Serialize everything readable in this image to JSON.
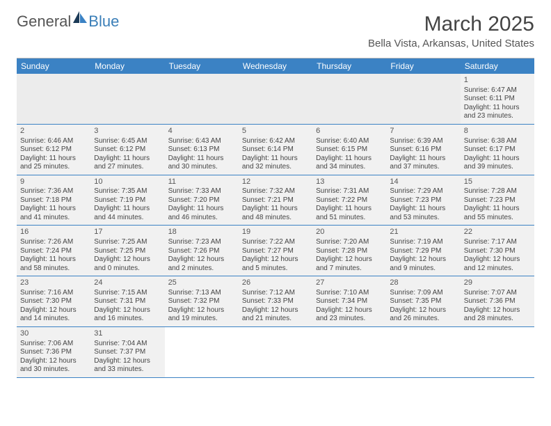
{
  "logo": {
    "text1": "General",
    "text2": "Blue"
  },
  "title": "March 2025",
  "location": "Bella Vista, Arkansas, United States",
  "day_headers": [
    "Sunday",
    "Monday",
    "Tuesday",
    "Wednesday",
    "Thursday",
    "Friday",
    "Saturday"
  ],
  "colors": {
    "header_bg": "#3b82c4",
    "header_text": "#ffffff",
    "cell_bg": "#f1f1f1",
    "row_border": "#3b82c4",
    "logo_blue": "#3b7fb8",
    "text": "#444444"
  },
  "weeks": [
    [
      null,
      null,
      null,
      null,
      null,
      null,
      {
        "n": "1",
        "sr": "Sunrise: 6:47 AM",
        "ss": "Sunset: 6:11 PM",
        "d1": "Daylight: 11 hours",
        "d2": "and 23 minutes."
      }
    ],
    [
      {
        "n": "2",
        "sr": "Sunrise: 6:46 AM",
        "ss": "Sunset: 6:12 PM",
        "d1": "Daylight: 11 hours",
        "d2": "and 25 minutes."
      },
      {
        "n": "3",
        "sr": "Sunrise: 6:45 AM",
        "ss": "Sunset: 6:12 PM",
        "d1": "Daylight: 11 hours",
        "d2": "and 27 minutes."
      },
      {
        "n": "4",
        "sr": "Sunrise: 6:43 AM",
        "ss": "Sunset: 6:13 PM",
        "d1": "Daylight: 11 hours",
        "d2": "and 30 minutes."
      },
      {
        "n": "5",
        "sr": "Sunrise: 6:42 AM",
        "ss": "Sunset: 6:14 PM",
        "d1": "Daylight: 11 hours",
        "d2": "and 32 minutes."
      },
      {
        "n": "6",
        "sr": "Sunrise: 6:40 AM",
        "ss": "Sunset: 6:15 PM",
        "d1": "Daylight: 11 hours",
        "d2": "and 34 minutes."
      },
      {
        "n": "7",
        "sr": "Sunrise: 6:39 AM",
        "ss": "Sunset: 6:16 PM",
        "d1": "Daylight: 11 hours",
        "d2": "and 37 minutes."
      },
      {
        "n": "8",
        "sr": "Sunrise: 6:38 AM",
        "ss": "Sunset: 6:17 PM",
        "d1": "Daylight: 11 hours",
        "d2": "and 39 minutes."
      }
    ],
    [
      {
        "n": "9",
        "sr": "Sunrise: 7:36 AM",
        "ss": "Sunset: 7:18 PM",
        "d1": "Daylight: 11 hours",
        "d2": "and 41 minutes."
      },
      {
        "n": "10",
        "sr": "Sunrise: 7:35 AM",
        "ss": "Sunset: 7:19 PM",
        "d1": "Daylight: 11 hours",
        "d2": "and 44 minutes."
      },
      {
        "n": "11",
        "sr": "Sunrise: 7:33 AM",
        "ss": "Sunset: 7:20 PM",
        "d1": "Daylight: 11 hours",
        "d2": "and 46 minutes."
      },
      {
        "n": "12",
        "sr": "Sunrise: 7:32 AM",
        "ss": "Sunset: 7:21 PM",
        "d1": "Daylight: 11 hours",
        "d2": "and 48 minutes."
      },
      {
        "n": "13",
        "sr": "Sunrise: 7:31 AM",
        "ss": "Sunset: 7:22 PM",
        "d1": "Daylight: 11 hours",
        "d2": "and 51 minutes."
      },
      {
        "n": "14",
        "sr": "Sunrise: 7:29 AM",
        "ss": "Sunset: 7:23 PM",
        "d1": "Daylight: 11 hours",
        "d2": "and 53 minutes."
      },
      {
        "n": "15",
        "sr": "Sunrise: 7:28 AM",
        "ss": "Sunset: 7:23 PM",
        "d1": "Daylight: 11 hours",
        "d2": "and 55 minutes."
      }
    ],
    [
      {
        "n": "16",
        "sr": "Sunrise: 7:26 AM",
        "ss": "Sunset: 7:24 PM",
        "d1": "Daylight: 11 hours",
        "d2": "and 58 minutes."
      },
      {
        "n": "17",
        "sr": "Sunrise: 7:25 AM",
        "ss": "Sunset: 7:25 PM",
        "d1": "Daylight: 12 hours",
        "d2": "and 0 minutes."
      },
      {
        "n": "18",
        "sr": "Sunrise: 7:23 AM",
        "ss": "Sunset: 7:26 PM",
        "d1": "Daylight: 12 hours",
        "d2": "and 2 minutes."
      },
      {
        "n": "19",
        "sr": "Sunrise: 7:22 AM",
        "ss": "Sunset: 7:27 PM",
        "d1": "Daylight: 12 hours",
        "d2": "and 5 minutes."
      },
      {
        "n": "20",
        "sr": "Sunrise: 7:20 AM",
        "ss": "Sunset: 7:28 PM",
        "d1": "Daylight: 12 hours",
        "d2": "and 7 minutes."
      },
      {
        "n": "21",
        "sr": "Sunrise: 7:19 AM",
        "ss": "Sunset: 7:29 PM",
        "d1": "Daylight: 12 hours",
        "d2": "and 9 minutes."
      },
      {
        "n": "22",
        "sr": "Sunrise: 7:17 AM",
        "ss": "Sunset: 7:30 PM",
        "d1": "Daylight: 12 hours",
        "d2": "and 12 minutes."
      }
    ],
    [
      {
        "n": "23",
        "sr": "Sunrise: 7:16 AM",
        "ss": "Sunset: 7:30 PM",
        "d1": "Daylight: 12 hours",
        "d2": "and 14 minutes."
      },
      {
        "n": "24",
        "sr": "Sunrise: 7:15 AM",
        "ss": "Sunset: 7:31 PM",
        "d1": "Daylight: 12 hours",
        "d2": "and 16 minutes."
      },
      {
        "n": "25",
        "sr": "Sunrise: 7:13 AM",
        "ss": "Sunset: 7:32 PM",
        "d1": "Daylight: 12 hours",
        "d2": "and 19 minutes."
      },
      {
        "n": "26",
        "sr": "Sunrise: 7:12 AM",
        "ss": "Sunset: 7:33 PM",
        "d1": "Daylight: 12 hours",
        "d2": "and 21 minutes."
      },
      {
        "n": "27",
        "sr": "Sunrise: 7:10 AM",
        "ss": "Sunset: 7:34 PM",
        "d1": "Daylight: 12 hours",
        "d2": "and 23 minutes."
      },
      {
        "n": "28",
        "sr": "Sunrise: 7:09 AM",
        "ss": "Sunset: 7:35 PM",
        "d1": "Daylight: 12 hours",
        "d2": "and 26 minutes."
      },
      {
        "n": "29",
        "sr": "Sunrise: 7:07 AM",
        "ss": "Sunset: 7:36 PM",
        "d1": "Daylight: 12 hours",
        "d2": "and 28 minutes."
      }
    ],
    [
      {
        "n": "30",
        "sr": "Sunrise: 7:06 AM",
        "ss": "Sunset: 7:36 PM",
        "d1": "Daylight: 12 hours",
        "d2": "and 30 minutes."
      },
      {
        "n": "31",
        "sr": "Sunrise: 7:04 AM",
        "ss": "Sunset: 7:37 PM",
        "d1": "Daylight: 12 hours",
        "d2": "and 33 minutes."
      },
      null,
      null,
      null,
      null,
      null
    ]
  ]
}
